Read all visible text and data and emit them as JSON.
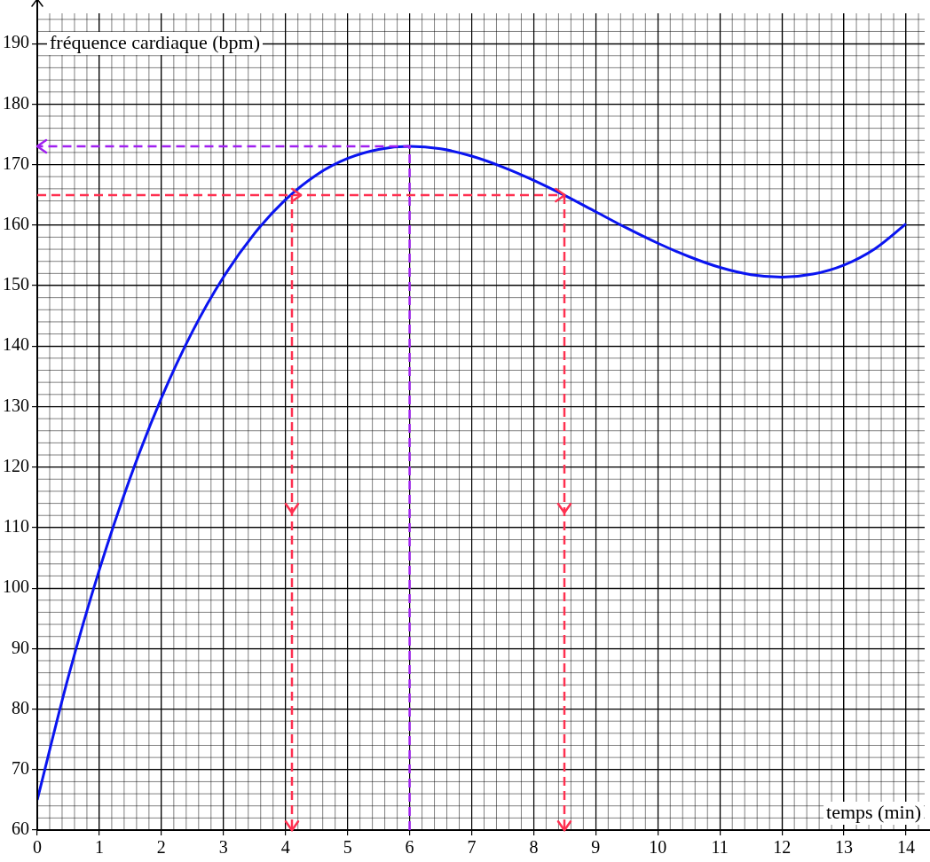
{
  "chart_data": {
    "type": "line",
    "xlabel": "temps (min)",
    "ylabel": "fréquence cardiaque (bpm)",
    "xlim": [
      0,
      14.3
    ],
    "ylim": [
      60,
      195
    ],
    "xticks": [
      0,
      1,
      2,
      3,
      4,
      5,
      6,
      7,
      8,
      9,
      10,
      11,
      12,
      13,
      14
    ],
    "yticks": [
      60,
      70,
      80,
      90,
      100,
      110,
      120,
      130,
      140,
      150,
      160,
      170,
      180,
      190
    ],
    "grid": true,
    "marker": "none",
    "series": [
      {
        "color": "#0a14f0",
        "x": [
          0,
          0.5,
          1,
          1.5,
          2,
          2.5,
          3,
          3.5,
          4,
          4.5,
          5,
          5.5,
          6,
          6.5,
          7,
          7.5,
          8,
          8.5,
          9,
          9.5,
          10,
          10.5,
          11,
          11.5,
          12,
          12.5,
          13,
          13.5,
          14
        ],
        "values": [
          65,
          85.3,
          103,
          118.3,
          131.4,
          142.4,
          151.4,
          158.6,
          164.2,
          168.3,
          171,
          172.5,
          173,
          172.6,
          171.4,
          169.6,
          167.4,
          164.9,
          162.2,
          159.5,
          157,
          154.8,
          153,
          151.8,
          151.4,
          151.9,
          153.4,
          156.1,
          160.2
        ]
      },
      {
        "color": "#ff3050",
        "line_style": "dashed",
        "x": [
          0,
          8.5
        ],
        "values": [
          165,
          165
        ]
      },
      {
        "color": "#ff3050",
        "line_style": "dashed",
        "x": [
          4.1,
          4.1
        ],
        "values": [
          165,
          60
        ]
      },
      {
        "color": "#ff3050",
        "line_style": "dashed",
        "x": [
          8.5,
          8.5
        ],
        "values": [
          165,
          60
        ]
      },
      {
        "color": "#a020f0",
        "line_style": "dashed",
        "x": [
          6,
          6,
          0
        ],
        "values": [
          60,
          173,
          173
        ]
      }
    ]
  }
}
